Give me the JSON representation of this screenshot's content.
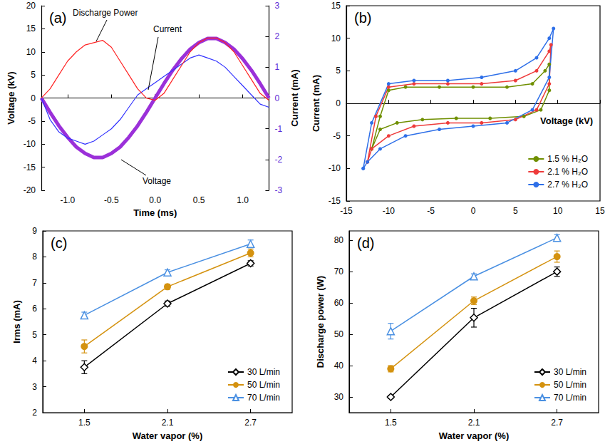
{
  "chart_data": [
    {
      "type": "line",
      "title": "(a)",
      "x_label": "Time (ms)",
      "y_label": "Voltage (kV)",
      "y2_label": "Current (mA)",
      "x": [
        -1.3,
        -1.2,
        -1.1,
        -1.0,
        -0.9,
        -0.8,
        -0.7,
        -0.6,
        -0.5,
        -0.4,
        -0.3,
        -0.2,
        -0.1,
        0.0,
        0.1,
        0.2,
        0.3,
        0.4,
        0.5,
        0.6,
        0.7,
        0.8,
        0.9,
        1.0,
        1.1,
        1.2,
        1.3
      ],
      "xlim": [
        -1.3,
        1.3
      ],
      "xticks": [
        {
          "value": -1,
          "label": "-1.0"
        },
        {
          "value": -0.5,
          "label": "-0.5"
        },
        {
          "value": 0,
          "label": "0.0"
        },
        {
          "value": 0.5,
          "label": "0.5"
        },
        {
          "value": 1,
          "label": "1.0"
        }
      ],
      "ylim": [
        -20,
        20
      ],
      "yticks": [
        -20,
        -15,
        -10,
        -5,
        0,
        5,
        10,
        15,
        20
      ],
      "y2lim": [
        -3,
        3
      ],
      "y2ticks": [
        -3,
        -2,
        -1,
        0,
        1,
        2,
        3
      ],
      "series": [
        {
          "name": "Voltage",
          "color": "#9b30d9",
          "line_style": "thick",
          "values": [
            0,
            -3.1,
            -6.0,
            -8.5,
            -10.6,
            -12.0,
            -12.9,
            -12.9,
            -12.0,
            -10.6,
            -8.5,
            -6.0,
            -3.1,
            0,
            3.1,
            6.0,
            8.5,
            10.6,
            12.0,
            12.9,
            12.9,
            12.0,
            10.6,
            8.5,
            6.0,
            3.1,
            0
          ]
        },
        {
          "name": "Current",
          "color": "#3333ff",
          "axis": "y2",
          "line_style": "solid",
          "values": [
            0,
            -0.7,
            -1.1,
            -1.3,
            -1.4,
            -1.5,
            -1.4,
            -1.2,
            -1.0,
            -0.7,
            -0.3,
            0.1,
            0.3,
            0.5,
            0.7,
            0.9,
            1.1,
            1.3,
            1.4,
            1.3,
            1.2,
            1.0,
            0.7,
            0.4,
            0.1,
            -0.2,
            -0.3
          ]
        },
        {
          "name": "Discharge Power",
          "color": "#ff2222",
          "line_style": "solid",
          "values": [
            0,
            2,
            5,
            8,
            10,
            11.5,
            12,
            12.5,
            11,
            8,
            5,
            2,
            0,
            -0.5,
            1,
            4,
            7,
            10,
            12,
            13,
            13,
            12,
            10,
            7,
            4,
            1,
            -0.5
          ]
        }
      ]
    },
    {
      "type": "line",
      "title": "(b)",
      "x_label": "Voltage (kV)",
      "y_label": "Current (mA)",
      "marker": "circle",
      "legend": "lower right",
      "xlim": [
        -15,
        15
      ],
      "xticks": [
        -15,
        -10,
        -5,
        0,
        5,
        10,
        15
      ],
      "ylim": [
        -15,
        15
      ],
      "yticks": [
        -15,
        -10,
        -5,
        0,
        5,
        10,
        15
      ],
      "series": [
        {
          "name": "1.5 % H₂O",
          "color": "#6f8f00",
          "x": [
            -12,
            -11,
            -10,
            -8,
            -4,
            0,
            4,
            7,
            8.5,
            9,
            9,
            8,
            6,
            2,
            -2,
            -6,
            -9,
            -11,
            -12
          ],
          "values": [
            -7,
            -2,
            2,
            2.5,
            2.5,
            2.5,
            2.5,
            3,
            5,
            6,
            2,
            -1,
            -2,
            -2.3,
            -2.3,
            -2.5,
            -3,
            -4,
            -7
          ]
        },
        {
          "name": "2.1 % H₂O",
          "color": "#ee3b3b",
          "x": [
            -12.5,
            -11.5,
            -10,
            -7,
            -3,
            1,
            5,
            7.5,
            9,
            9.2,
            9,
            7.5,
            5,
            1,
            -3,
            -7,
            -10,
            -12,
            -12.5
          ],
          "values": [
            -9,
            -2,
            2.5,
            3,
            3,
            3,
            3.5,
            5,
            8,
            9,
            3,
            -1,
            -2.5,
            -3,
            -3,
            -3.5,
            -5,
            -7,
            -9
          ]
        },
        {
          "name": "2.7 % H₂O",
          "color": "#2e6fe8",
          "x": [
            -13,
            -12,
            -10,
            -7,
            -3,
            1,
            5,
            7.5,
            9,
            9.5,
            9,
            7,
            4,
            0,
            -4,
            -8,
            -11,
            -12.5,
            -13
          ],
          "values": [
            -10,
            -3,
            3,
            3.5,
            3.5,
            4,
            5,
            7,
            10,
            11.5,
            4,
            -1,
            -3,
            -3.5,
            -4,
            -5,
            -7,
            -9,
            -10
          ]
        }
      ]
    },
    {
      "type": "line",
      "title": "(c)",
      "x_label": "Water vapor (%)",
      "y_label": "Irms (mA)",
      "legend": "lower right",
      "categories": [
        "1.5",
        "2.1",
        "2.7"
      ],
      "ylim": [
        2,
        9
      ],
      "yticks": [
        2,
        3,
        4,
        5,
        6,
        7,
        8,
        9
      ],
      "series": [
        {
          "name": "30 L/min",
          "color": "#000000",
          "marker": "open diamond",
          "values": [
            3.75,
            6.2,
            7.75
          ],
          "errors": [
            0.25,
            0.1,
            0.1
          ]
        },
        {
          "name": "50 L/min",
          "color": "#d4920f",
          "marker": "circle",
          "values": [
            4.55,
            6.85,
            8.15
          ],
          "errors": [
            0.25,
            0.1,
            0.15
          ]
        },
        {
          "name": "70 L/min",
          "color": "#4a90e2",
          "marker": "open triangle",
          "values": [
            5.75,
            7.4,
            8.5
          ],
          "errors": [
            0.12,
            0.1,
            0.15
          ]
        }
      ]
    },
    {
      "type": "line",
      "title": "(d)",
      "x_label": "Water vapor (%)",
      "y_label": "Discharge power (W)",
      "legend": "lower right",
      "categories": [
        "1.5",
        "2.1",
        "2.7"
      ],
      "ylim": [
        25,
        83
      ],
      "yticks": [
        30,
        40,
        50,
        60,
        70,
        80
      ],
      "series": [
        {
          "name": "30 L/min",
          "color": "#000000",
          "marker": "open diamond",
          "values": [
            30,
            55.3,
            70
          ],
          "errors": [
            0.5,
            3,
            1.5
          ]
        },
        {
          "name": "50 L/min",
          "color": "#d4920f",
          "marker": "circle",
          "values": [
            39,
            60.7,
            74.8
          ],
          "errors": [
            1,
            1.2,
            1.8
          ]
        },
        {
          "name": "70 L/min",
          "color": "#4a90e2",
          "marker": "open triangle",
          "values": [
            51,
            68.5,
            80.8
          ],
          "errors": [
            2.5,
            0.8,
            1
          ]
        }
      ]
    }
  ]
}
